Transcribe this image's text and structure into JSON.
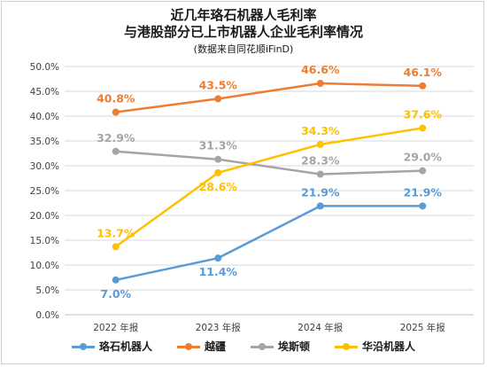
{
  "header": {
    "title_line1": "近几年珞石机器人毛利率",
    "title_line2": "与港股部分已上市机器人企业毛利率情况",
    "subtitle": "(数据来自同花顺iFinD)"
  },
  "chart_data": {
    "type": "line",
    "categories": [
      "2022 年报",
      "2023 年报",
      "2024 年报",
      "2025 年报"
    ],
    "ylim": [
      0,
      50
    ],
    "ytick_step": 5,
    "ytick_labels": [
      "0.0%",
      "5.0%",
      "10.0%",
      "15.0%",
      "20.0%",
      "25.0%",
      "30.0%",
      "35.0%",
      "40.0%",
      "45.0%",
      "50.0%"
    ],
    "grid": true,
    "legend_position": "bottom",
    "series": [
      {
        "name": "珞石机器人",
        "color": "#5b9bd5",
        "values": [
          7.0,
          11.4,
          21.9,
          21.9
        ],
        "labels": [
          "7.0%",
          "11.4%",
          "21.9%",
          "21.9%"
        ]
      },
      {
        "name": "越疆",
        "color": "#ed7d31",
        "values": [
          40.8,
          43.5,
          46.6,
          46.1
        ],
        "labels": [
          "40.8%",
          "43.5%",
          "46.6%",
          "46.1%"
        ]
      },
      {
        "name": "埃斯顿",
        "color": "#a5a5a5",
        "values": [
          32.9,
          31.3,
          28.3,
          29.0
        ],
        "labels": [
          "32.9%",
          "31.3%",
          "28.3%",
          "29.0%"
        ]
      },
      {
        "name": "华沿机器人",
        "color": "#ffc000",
        "values": [
          13.7,
          28.6,
          34.3,
          37.6
        ],
        "labels": [
          "13.7%",
          "28.6%",
          "34.3%",
          "37.6%"
        ]
      }
    ]
  }
}
